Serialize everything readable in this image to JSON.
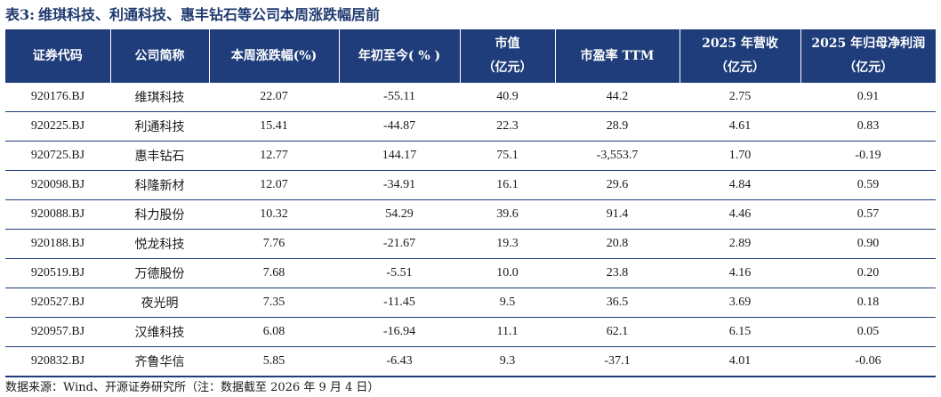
{
  "title": {
    "prefix": "表3:",
    "text": "维琪科技、利通科技、惠丰钻石等公司本周涨跌幅居前"
  },
  "table": {
    "headers": [
      {
        "line1": "证券代码",
        "line2": ""
      },
      {
        "line1": "公司简称",
        "line2": ""
      },
      {
        "line1": "本周涨跌幅(%)",
        "line2": ""
      },
      {
        "line1": "年初至今( % )",
        "line2": ""
      },
      {
        "line1": "市值",
        "line2": "（亿元）"
      },
      {
        "line1": "市盈率 TTM",
        "line2": ""
      },
      {
        "line1": "2025 年营收",
        "line2": "（亿元）"
      },
      {
        "line1": "2025 年归母净利润",
        "line2": "（亿元）"
      }
    ],
    "rows": [
      [
        "920176.BJ",
        "维琪科技",
        "22.07",
        "-55.11",
        "40.9",
        "44.2",
        "2.75",
        "0.91"
      ],
      [
        "920225.BJ",
        "利通科技",
        "15.41",
        "-44.87",
        "22.3",
        "28.9",
        "4.61",
        "0.83"
      ],
      [
        "920725.BJ",
        "惠丰钻石",
        "12.77",
        "144.17",
        "75.1",
        "-3,553.7",
        "1.70",
        "-0.19"
      ],
      [
        "920098.BJ",
        "科隆新材",
        "12.07",
        "-34.91",
        "16.1",
        "29.6",
        "4.84",
        "0.59"
      ],
      [
        "920088.BJ",
        "科力股份",
        "10.32",
        "54.29",
        "39.6",
        "91.4",
        "4.46",
        "0.57"
      ],
      [
        "920188.BJ",
        "悦龙科技",
        "7.76",
        "-21.67",
        "19.3",
        "20.8",
        "2.89",
        "0.90"
      ],
      [
        "920519.BJ",
        "万德股份",
        "7.68",
        "-5.51",
        "10.0",
        "23.8",
        "4.16",
        "0.20"
      ],
      [
        "920527.BJ",
        "夜光明",
        "7.35",
        "-11.45",
        "9.5",
        "36.5",
        "3.69",
        "0.18"
      ],
      [
        "920957.BJ",
        "汉维科技",
        "6.08",
        "-16.94",
        "11.1",
        "62.1",
        "6.15",
        "0.05"
      ],
      [
        "920832.BJ",
        "齐鲁华信",
        "5.85",
        "-6.43",
        "9.3",
        "-37.1",
        "4.01",
        "-0.06"
      ]
    ]
  },
  "source": "数据来源：Wind、开源证券研究所（注：数据截至 2026 年 9 月 4 日）",
  "colors": {
    "header_bg": "#1f3d7a",
    "title_text": "#1f3a70",
    "rule": "#1f3d7a"
  }
}
